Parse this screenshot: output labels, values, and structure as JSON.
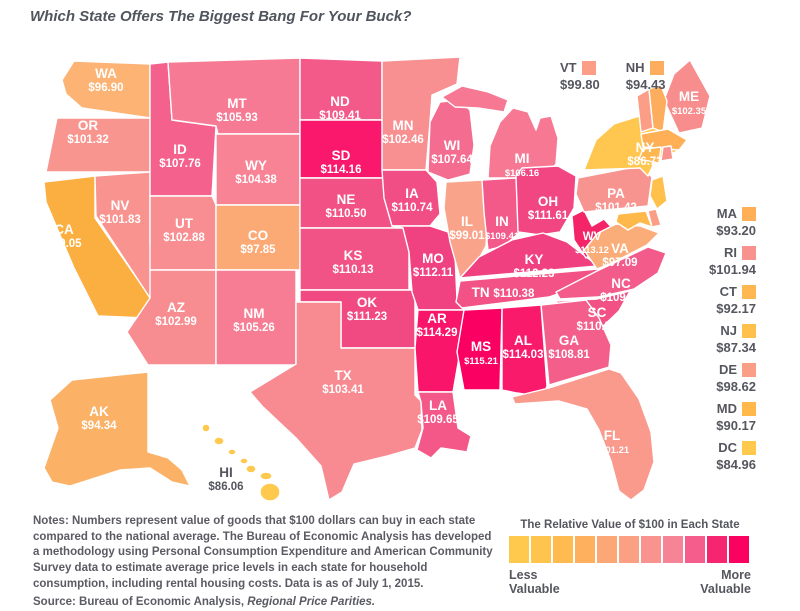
{
  "title": "Which State Offers The Biggest Bang For Your Buck?",
  "notes": "Notes: Numbers represent value of goods that $100 dollars can buy in each state compared to the national average. The Bureau of Economic Analysis has developed a methodology using Personal Consumption Expenditure and American Community Survey data to estimate average price levels in each state for household consumption, including rental housing costs. Data is as of July 1, 2015.",
  "source": {
    "prefix": "Source: Bureau of Economic Analysis, ",
    "italic": "Regional Price Parities."
  },
  "top_legend_states": [
    "VT",
    "NH"
  ],
  "side_legend_states": [
    "MA",
    "RI",
    "CT",
    "NJ",
    "DE",
    "MD",
    "DC"
  ],
  "scale_legend": {
    "title": "The Relative Value of $100 in Each State",
    "less_label": "Less\nValuable",
    "more_label": "More\nValuable",
    "colors": [
      "#FFC94E",
      "#FFC44E",
      "#FFBB50",
      "#FFB05E",
      "#FCA876",
      "#FBA083",
      "#F9938F",
      "#F78396",
      "#F55E8C",
      "#F62570",
      "#FB0261"
    ]
  },
  "text_color": "#55565E",
  "chart_data": {
    "type": "choropleth",
    "region": "United States (50 states + DC)",
    "title": "Which State Offers The Biggest Bang For Your Buck?",
    "metric": "The Relative Value of $100 in Each State",
    "data_as_of": "July 1, 2015",
    "source": "Bureau of Economic Analysis, Regional Price Parities",
    "value_range": [
      84.96,
      115.21
    ],
    "states": [
      {
        "abbr": "WA",
        "value": 96.9,
        "display": "$96.90",
        "color": "#FCB374"
      },
      {
        "abbr": "OR",
        "value": 101.32,
        "display": "$101.32",
        "color": "#F9958F"
      },
      {
        "abbr": "CA",
        "value": 89.05,
        "display": "$89.05",
        "color": "#FBAF40"
      },
      {
        "abbr": "NV",
        "value": 101.83,
        "display": "$101.83",
        "color": "#F9938F"
      },
      {
        "abbr": "ID",
        "value": 107.76,
        "display": "$107.76",
        "color": "#F4618C"
      },
      {
        "abbr": "MT",
        "value": 105.93,
        "display": "$105.93",
        "color": "#F67A93"
      },
      {
        "abbr": "WY",
        "value": 104.38,
        "display": "$104.38",
        "color": "#F78394"
      },
      {
        "abbr": "UT",
        "value": 102.88,
        "display": "$102.88",
        "color": "#F88E91"
      },
      {
        "abbr": "CO",
        "value": 97.85,
        "display": "$97.85",
        "color": "#FBAA76"
      },
      {
        "abbr": "AZ",
        "value": 102.99,
        "display": "$102.99",
        "color": "#F88D91"
      },
      {
        "abbr": "NM",
        "value": 105.26,
        "display": "$105.26",
        "color": "#F67D93"
      },
      {
        "abbr": "ND",
        "value": 109.41,
        "display": "$109.41",
        "color": "#F35A89"
      },
      {
        "abbr": "SD",
        "value": 114.16,
        "display": "$114.16",
        "color": "#F9186B"
      },
      {
        "abbr": "NE",
        "value": 110.5,
        "display": "$110.50",
        "color": "#F25186"
      },
      {
        "abbr": "KS",
        "value": 110.13,
        "display": "$110.13",
        "color": "#F25387"
      },
      {
        "abbr": "OK",
        "value": 111.23,
        "display": "$111.23",
        "color": "#F14A83"
      },
      {
        "abbr": "TX",
        "value": 103.41,
        "display": "$103.41",
        "color": "#F88B91"
      },
      {
        "abbr": "MN",
        "value": 102.46,
        "display": "$102.46",
        "color": "#F88F90"
      },
      {
        "abbr": "IA",
        "value": 110.74,
        "display": "$110.74",
        "color": "#F14E85"
      },
      {
        "abbr": "MO",
        "value": 112.11,
        "display": "$112.11",
        "color": "#F04180"
      },
      {
        "abbr": "AR",
        "value": 114.29,
        "display": "$114.29",
        "color": "#F9166A"
      },
      {
        "abbr": "LA",
        "value": 109.65,
        "display": "$109.65",
        "color": "#F35889"
      },
      {
        "abbr": "WI",
        "value": 107.64,
        "display": "$107.64",
        "color": "#F46C90"
      },
      {
        "abbr": "IL",
        "value": 99.01,
        "display": "$99.01",
        "color": "#F9A48A"
      },
      {
        "abbr": "MI",
        "value": 106.16,
        "display": "$106.16",
        "color": "#F67893"
      },
      {
        "abbr": "IN",
        "value": 109.41,
        "display": "$109.41",
        "color": "#F35A89"
      },
      {
        "abbr": "OH",
        "value": 111.61,
        "display": "$111.61",
        "color": "#F14682"
      },
      {
        "abbr": "KY",
        "value": 112.23,
        "display": "$112.23",
        "color": "#F04080"
      },
      {
        "abbr": "TN",
        "value": 110.38,
        "display": "$110.38",
        "color": "#F25286"
      },
      {
        "abbr": "WV",
        "value": 113.12,
        "display": "$113.12",
        "color": "#F32568"
      },
      {
        "abbr": "VA",
        "value": 97.09,
        "display": "$97.09",
        "color": "#FBAD79"
      },
      {
        "abbr": "NC",
        "value": 109.05,
        "display": "$109.05",
        "color": "#F35C8A"
      },
      {
        "abbr": "SC",
        "value": 110.5,
        "display": "$110.50",
        "color": "#F25186"
      },
      {
        "abbr": "GA",
        "value": 108.81,
        "display": "$108.81",
        "color": "#F35E8B"
      },
      {
        "abbr": "AL",
        "value": 114.03,
        "display": "$114.03",
        "color": "#F91A6C"
      },
      {
        "abbr": "MS",
        "value": 115.21,
        "display": "$115.21",
        "color": "#FA0063"
      },
      {
        "abbr": "FL",
        "value": 101.21,
        "display": "$101.21",
        "color": "#F99A8D"
      },
      {
        "abbr": "PA",
        "value": 101.42,
        "display": "$101.42",
        "color": "#F8948F"
      },
      {
        "abbr": "NY",
        "value": 86.73,
        "display": "$86.73",
        "color": "#FFC74F"
      },
      {
        "abbr": "ME",
        "value": 102.35,
        "display": "$102.35",
        "color": "#F88D8E"
      },
      {
        "abbr": "VT",
        "value": 99.8,
        "display": "$99.80",
        "color": "#FB9D87"
      },
      {
        "abbr": "NH",
        "value": 94.43,
        "display": "$94.43",
        "color": "#FCAD5E"
      },
      {
        "abbr": "MA",
        "value": 93.2,
        "display": "$93.20",
        "color": "#FFAF56"
      },
      {
        "abbr": "RI",
        "value": 101.94,
        "display": "$101.94",
        "color": "#F8928F"
      },
      {
        "abbr": "CT",
        "value": 92.17,
        "display": "$92.17",
        "color": "#FFB751"
      },
      {
        "abbr": "NJ",
        "value": 87.34,
        "display": "$87.34",
        "color": "#FFC14C"
      },
      {
        "abbr": "DE",
        "value": 98.62,
        "display": "$98.62",
        "color": "#FA9E85"
      },
      {
        "abbr": "MD",
        "value": 90.17,
        "display": "$90.17",
        "color": "#FFB84A"
      },
      {
        "abbr": "DC",
        "value": 84.96,
        "display": "$84.96",
        "color": "#FFC94E"
      },
      {
        "abbr": "AK",
        "value": 94.34,
        "display": "$94.34",
        "color": "#FBB166"
      },
      {
        "abbr": "HI",
        "value": 86.06,
        "display": "$86.06",
        "color": "#FFC94E"
      }
    ]
  }
}
